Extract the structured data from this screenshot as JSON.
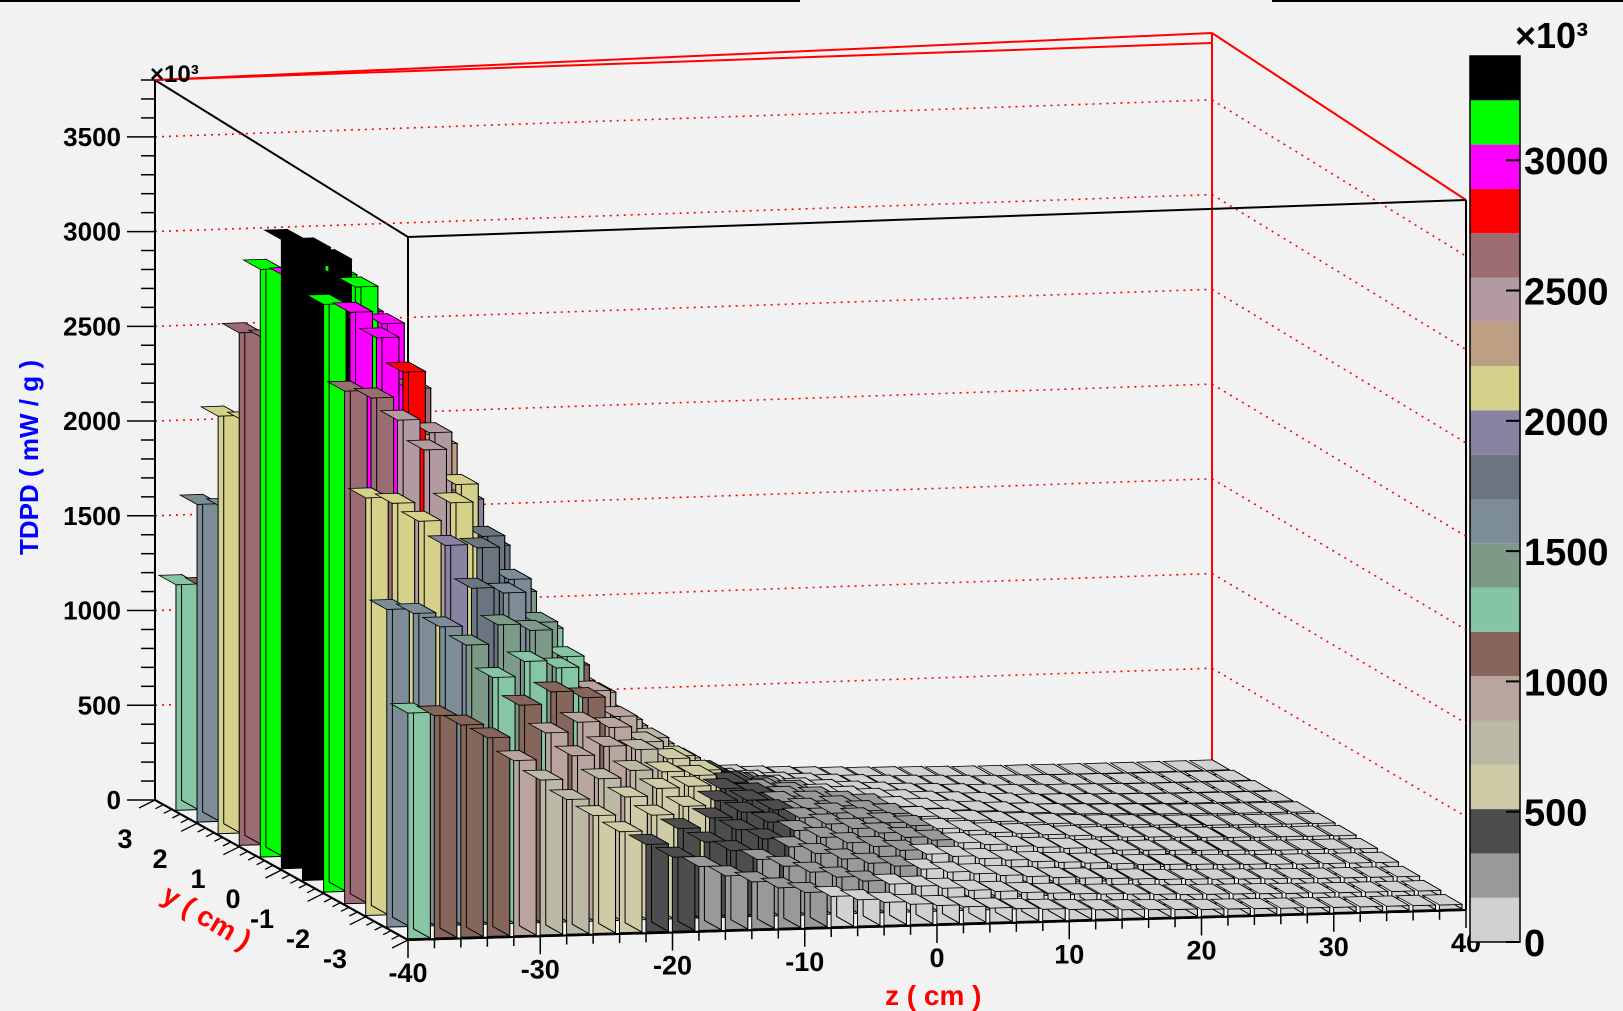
{
  "chart_data": {
    "type": "lego3d",
    "title": "",
    "xlabel": "z ( cm )",
    "ylabel": "y ( cm )",
    "zlabel": "TDPD ( mW / g )",
    "z_exponent": "×10³",
    "palette_exponent": "×10³",
    "xlim": [
      -40,
      40
    ],
    "ylim": [
      -3,
      3
    ],
    "zlim": [
      0,
      3800
    ],
    "x_ticks": [
      -40,
      -30,
      -20,
      -10,
      0,
      10,
      20,
      30,
      40
    ],
    "y_ticks": [
      3,
      2,
      1,
      0,
      -1,
      -2,
      -3
    ],
    "z_ticks": [
      0,
      500,
      1000,
      1500,
      2000,
      2500,
      3000,
      3500
    ],
    "palette_ticks": [
      0,
      500,
      1000,
      1500,
      2000,
      2500,
      3000
    ],
    "palette_max": 3400,
    "palette_colors": [
      "#d1d1d1",
      "#999999",
      "#4d4d4d",
      "#d0cba7",
      "#bbb8a6",
      "#b9a59e",
      "#86665a",
      "#86c5a4",
      "#7d9a88",
      "#7c8d98",
      "#6b7680",
      "#8783a0",
      "#d4d18b",
      "#bd9f83",
      "#b39aa0",
      "#9b6d73",
      "#ff0000",
      "#ff00ff",
      "#00ff00",
      "#000000"
    ],
    "grid": true,
    "series": [
      {
        "description_x": "z bin centers (cm)",
        "x": [
          -39,
          -37,
          -35,
          -33,
          -31,
          -29,
          -27,
          -25,
          -23,
          -21,
          -19,
          -17,
          -15,
          -13,
          -11,
          -9,
          -7,
          -5,
          -3,
          -1,
          1,
          3,
          5,
          7,
          9,
          11,
          13,
          15,
          17,
          19,
          21,
          23,
          25,
          27,
          29,
          31,
          33,
          35,
          37,
          39
        ],
        "peak_values": [
          3350,
          3300,
          3150,
          2950,
          2600,
          2300,
          2000,
          1750,
          1500,
          1300,
          1100,
          950,
          800,
          700,
          600,
          520,
          450,
          390,
          340,
          300,
          270,
          240,
          210,
          190,
          170,
          155,
          140,
          130,
          120,
          110,
          100,
          95,
          90,
          85,
          80,
          75,
          72,
          70,
          68,
          66
        ]
      }
    ]
  }
}
